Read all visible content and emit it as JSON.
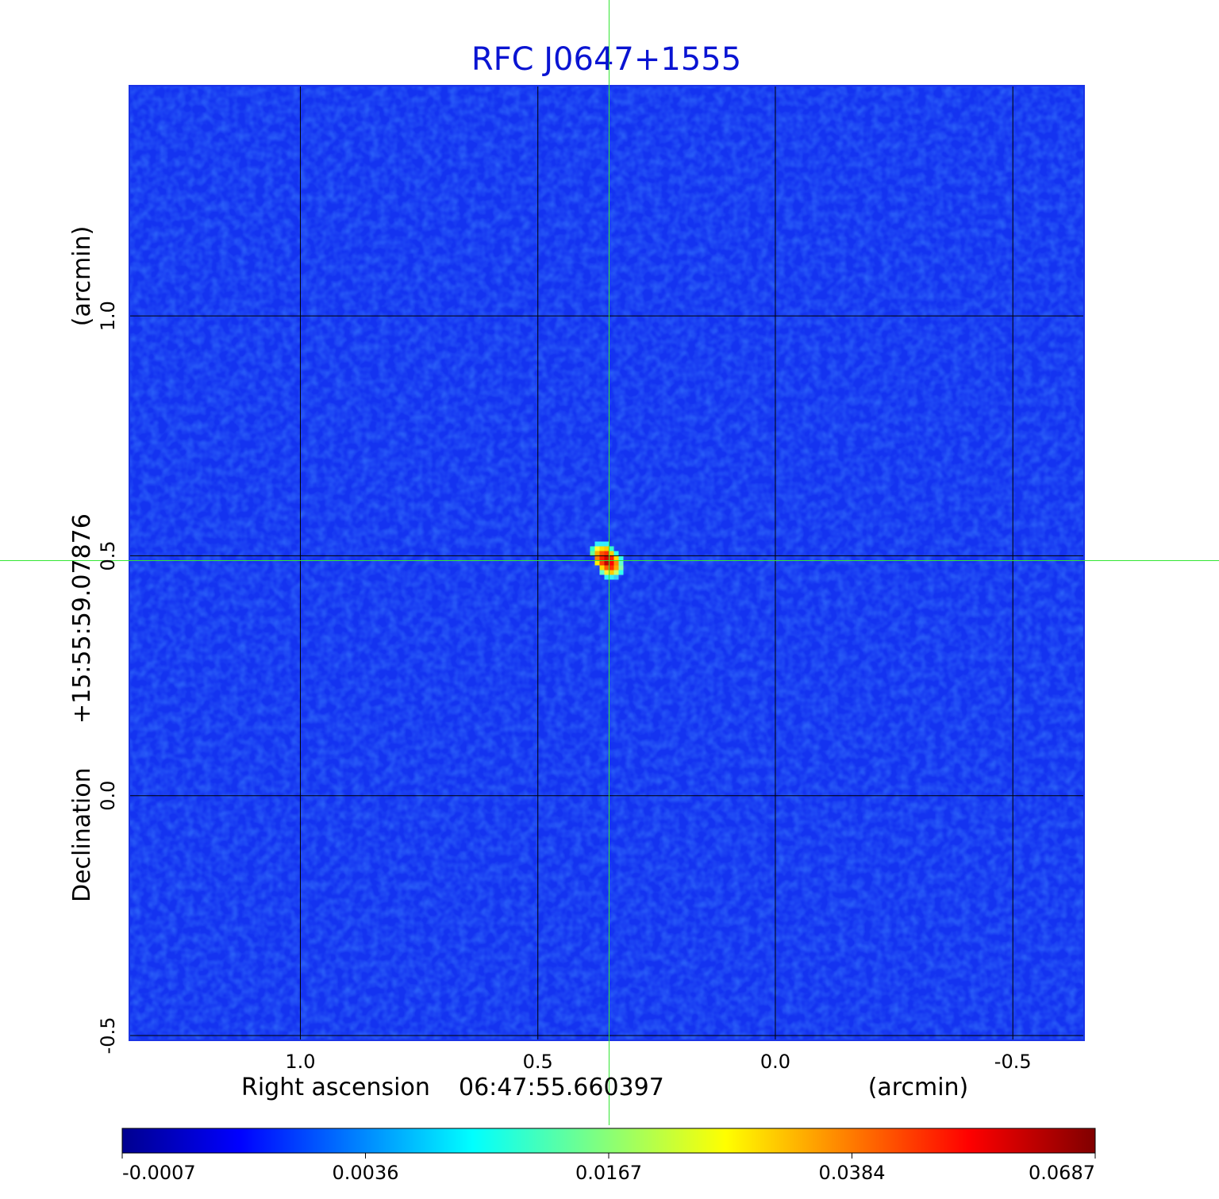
{
  "chart_data": {
    "type": "heatmap",
    "title": "RFC J0647+1555",
    "x_axis": {
      "label": "Right ascension",
      "center_value": "06:47:55.660397",
      "unit": "(arcmin)",
      "ticks": [
        "1.0",
        "0.5",
        "0.0",
        "-0.5"
      ],
      "tick_values": [
        1.0,
        0.5,
        0.0,
        -0.5
      ],
      "range": [
        1.36,
        -0.65
      ]
    },
    "y_axis": {
      "label": "Declination",
      "center_value": "+15:55:59.07876",
      "unit": "(arcmin)",
      "ticks": [
        "1.0",
        "0.5",
        "0.0",
        "-0.5"
      ],
      "tick_values": [
        1.0,
        0.5,
        0.0,
        -0.5
      ],
      "range": [
        -0.51,
        1.48
      ]
    },
    "grid": true,
    "crosshair": {
      "x": 0.35,
      "y": 0.49
    },
    "source_peak": {
      "x": 0.35,
      "y": 0.49,
      "value": 0.0687
    },
    "background_level": -0.0004,
    "colorbar": {
      "ticks": [
        "-0.0007",
        "0.0036",
        "0.0167",
        "0.0384",
        "0.0687"
      ],
      "min": -0.0007,
      "max": 0.0687,
      "colormap": "jet"
    },
    "colors": {
      "title": "#0a14d2",
      "crosshair": "#33e633",
      "grid": "#000000"
    }
  }
}
